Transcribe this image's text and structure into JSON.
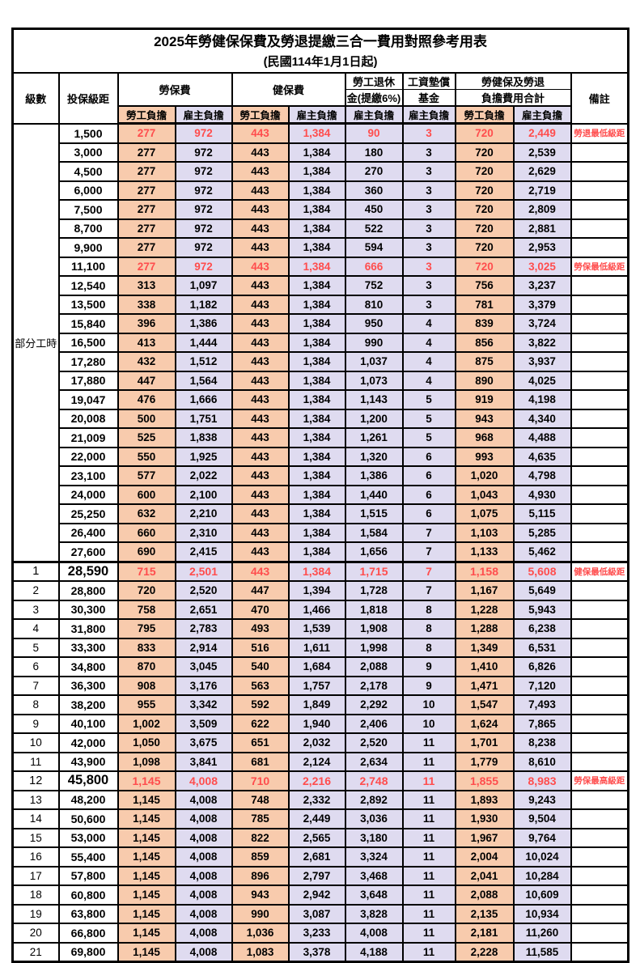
{
  "title": "2025年勞健保保費及勞退提繳三合一費用對照參考用表",
  "subtitle": "(民國114年1月1日起)",
  "columns": {
    "level": "級數",
    "bracket": "投保級距",
    "labor_insurance": "勞保費",
    "health_insurance": "健保費",
    "pension_line1": "勞工退休",
    "pension_line2": "金(提繳6%)",
    "wage_fund_line1": "工資墊償",
    "wage_fund_line2": "基金",
    "total_line1": "勞健保及勞退",
    "total_line2": "負擔費用合計",
    "remark": "備註",
    "employee": "勞工負擔",
    "employer": "雇主負擔"
  },
  "group_label": "部分工時",
  "colors": {
    "employee_bg": "#F8CBAD",
    "employer_bg": "#DFDBF0",
    "highlight_text": "#FF4D4D"
  },
  "rows": [
    {
      "level": "",
      "bracket": "1,500",
      "values": [
        "277",
        "972",
        "443",
        "1,384",
        "90",
        "3",
        "720",
        "2,449"
      ],
      "remark": "勞退最低級距",
      "red": true,
      "emph": false
    },
    {
      "level": "",
      "bracket": "3,000",
      "values": [
        "277",
        "972",
        "443",
        "1,384",
        "180",
        "3",
        "720",
        "2,539"
      ],
      "remark": "",
      "red": false,
      "emph": false
    },
    {
      "level": "",
      "bracket": "4,500",
      "values": [
        "277",
        "972",
        "443",
        "1,384",
        "270",
        "3",
        "720",
        "2,629"
      ],
      "remark": "",
      "red": false,
      "emph": false
    },
    {
      "level": "",
      "bracket": "6,000",
      "values": [
        "277",
        "972",
        "443",
        "1,384",
        "360",
        "3",
        "720",
        "2,719"
      ],
      "remark": "",
      "red": false,
      "emph": false
    },
    {
      "level": "",
      "bracket": "7,500",
      "values": [
        "277",
        "972",
        "443",
        "1,384",
        "450",
        "3",
        "720",
        "2,809"
      ],
      "remark": "",
      "red": false,
      "emph": false
    },
    {
      "level": "",
      "bracket": "8,700",
      "values": [
        "277",
        "972",
        "443",
        "1,384",
        "522",
        "3",
        "720",
        "2,881"
      ],
      "remark": "",
      "red": false,
      "emph": false
    },
    {
      "level": "",
      "bracket": "9,900",
      "values": [
        "277",
        "972",
        "443",
        "1,384",
        "594",
        "3",
        "720",
        "2,953"
      ],
      "remark": "",
      "red": false,
      "emph": false
    },
    {
      "level": "",
      "bracket": "11,100",
      "values": [
        "277",
        "972",
        "443",
        "1,384",
        "666",
        "3",
        "720",
        "3,025"
      ],
      "remark": "勞保最低級距",
      "red": true,
      "emph": false
    },
    {
      "level": "",
      "bracket": "12,540",
      "values": [
        "313",
        "1,097",
        "443",
        "1,384",
        "752",
        "3",
        "756",
        "3,237"
      ],
      "remark": "",
      "red": false,
      "emph": false
    },
    {
      "level": "",
      "bracket": "13,500",
      "values": [
        "338",
        "1,182",
        "443",
        "1,384",
        "810",
        "3",
        "781",
        "3,379"
      ],
      "remark": "",
      "red": false,
      "emph": false
    },
    {
      "level": "",
      "bracket": "15,840",
      "values": [
        "396",
        "1,386",
        "443",
        "1,384",
        "950",
        "4",
        "839",
        "3,724"
      ],
      "remark": "",
      "red": false,
      "emph": false
    },
    {
      "level": "",
      "bracket": "16,500",
      "values": [
        "413",
        "1,444",
        "443",
        "1,384",
        "990",
        "4",
        "856",
        "3,822"
      ],
      "remark": "",
      "red": false,
      "emph": false
    },
    {
      "level": "",
      "bracket": "17,280",
      "values": [
        "432",
        "1,512",
        "443",
        "1,384",
        "1,037",
        "4",
        "875",
        "3,937"
      ],
      "remark": "",
      "red": false,
      "emph": false
    },
    {
      "level": "",
      "bracket": "17,880",
      "values": [
        "447",
        "1,564",
        "443",
        "1,384",
        "1,073",
        "4",
        "890",
        "4,025"
      ],
      "remark": "",
      "red": false,
      "emph": false
    },
    {
      "level": "",
      "bracket": "19,047",
      "values": [
        "476",
        "1,666",
        "443",
        "1,384",
        "1,143",
        "5",
        "919",
        "4,198"
      ],
      "remark": "",
      "red": false,
      "emph": false
    },
    {
      "level": "",
      "bracket": "20,008",
      "values": [
        "500",
        "1,751",
        "443",
        "1,384",
        "1,200",
        "5",
        "943",
        "4,340"
      ],
      "remark": "",
      "red": false,
      "emph": false
    },
    {
      "level": "",
      "bracket": "21,009",
      "values": [
        "525",
        "1,838",
        "443",
        "1,384",
        "1,261",
        "5",
        "968",
        "4,488"
      ],
      "remark": "",
      "red": false,
      "emph": false
    },
    {
      "level": "",
      "bracket": "22,000",
      "values": [
        "550",
        "1,925",
        "443",
        "1,384",
        "1,320",
        "6",
        "993",
        "4,635"
      ],
      "remark": "",
      "red": false,
      "emph": false
    },
    {
      "level": "",
      "bracket": "23,100",
      "values": [
        "577",
        "2,022",
        "443",
        "1,384",
        "1,386",
        "6",
        "1,020",
        "4,798"
      ],
      "remark": "",
      "red": false,
      "emph": false
    },
    {
      "level": "",
      "bracket": "24,000",
      "values": [
        "600",
        "2,100",
        "443",
        "1,384",
        "1,440",
        "6",
        "1,043",
        "4,930"
      ],
      "remark": "",
      "red": false,
      "emph": false
    },
    {
      "level": "",
      "bracket": "25,250",
      "values": [
        "632",
        "2,210",
        "443",
        "1,384",
        "1,515",
        "6",
        "1,075",
        "5,115"
      ],
      "remark": "",
      "red": false,
      "emph": false
    },
    {
      "level": "",
      "bracket": "26,400",
      "values": [
        "660",
        "2,310",
        "443",
        "1,384",
        "1,584",
        "7",
        "1,103",
        "5,285"
      ],
      "remark": "",
      "red": false,
      "emph": false
    },
    {
      "level": "",
      "bracket": "27,600",
      "values": [
        "690",
        "2,415",
        "443",
        "1,384",
        "1,656",
        "7",
        "1,133",
        "5,462"
      ],
      "remark": "",
      "red": false,
      "emph": false
    },
    {
      "level": "1",
      "bracket": "28,590",
      "values": [
        "715",
        "2,501",
        "443",
        "1,384",
        "1,715",
        "7",
        "1,158",
        "5,608"
      ],
      "remark": "健保最低級距",
      "red": true,
      "emph": true
    },
    {
      "level": "2",
      "bracket": "28,800",
      "values": [
        "720",
        "2,520",
        "447",
        "1,394",
        "1,728",
        "7",
        "1,167",
        "5,649"
      ],
      "remark": "",
      "red": false,
      "emph": false
    },
    {
      "level": "3",
      "bracket": "30,300",
      "values": [
        "758",
        "2,651",
        "470",
        "1,466",
        "1,818",
        "8",
        "1,228",
        "5,943"
      ],
      "remark": "",
      "red": false,
      "emph": false
    },
    {
      "level": "4",
      "bracket": "31,800",
      "values": [
        "795",
        "2,783",
        "493",
        "1,539",
        "1,908",
        "8",
        "1,288",
        "6,238"
      ],
      "remark": "",
      "red": false,
      "emph": false
    },
    {
      "level": "5",
      "bracket": "33,300",
      "values": [
        "833",
        "2,914",
        "516",
        "1,611",
        "1,998",
        "8",
        "1,349",
        "6,531"
      ],
      "remark": "",
      "red": false,
      "emph": false
    },
    {
      "level": "6",
      "bracket": "34,800",
      "values": [
        "870",
        "3,045",
        "540",
        "1,684",
        "2,088",
        "9",
        "1,410",
        "6,826"
      ],
      "remark": "",
      "red": false,
      "emph": false
    },
    {
      "level": "7",
      "bracket": "36,300",
      "values": [
        "908",
        "3,176",
        "563",
        "1,757",
        "2,178",
        "9",
        "1,471",
        "7,120"
      ],
      "remark": "",
      "red": false,
      "emph": false
    },
    {
      "level": "8",
      "bracket": "38,200",
      "values": [
        "955",
        "3,342",
        "592",
        "1,849",
        "2,292",
        "10",
        "1,547",
        "7,493"
      ],
      "remark": "",
      "red": false,
      "emph": false
    },
    {
      "level": "9",
      "bracket": "40,100",
      "values": [
        "1,002",
        "3,509",
        "622",
        "1,940",
        "2,406",
        "10",
        "1,624",
        "7,865"
      ],
      "remark": "",
      "red": false,
      "emph": false
    },
    {
      "level": "10",
      "bracket": "42,000",
      "values": [
        "1,050",
        "3,675",
        "651",
        "2,032",
        "2,520",
        "11",
        "1,701",
        "8,238"
      ],
      "remark": "",
      "red": false,
      "emph": false
    },
    {
      "level": "11",
      "bracket": "43,900",
      "values": [
        "1,098",
        "3,841",
        "681",
        "2,124",
        "2,634",
        "11",
        "1,779",
        "8,610"
      ],
      "remark": "",
      "red": false,
      "emph": false
    },
    {
      "level": "12",
      "bracket": "45,800",
      "values": [
        "1,145",
        "4,008",
        "710",
        "2,216",
        "2,748",
        "11",
        "1,855",
        "8,983"
      ],
      "remark": "勞保最高級距",
      "red": true,
      "emph": true
    },
    {
      "level": "13",
      "bracket": "48,200",
      "values": [
        "1,145",
        "4,008",
        "748",
        "2,332",
        "2,892",
        "11",
        "1,893",
        "9,243"
      ],
      "remark": "",
      "red": false,
      "emph": false
    },
    {
      "level": "14",
      "bracket": "50,600",
      "values": [
        "1,145",
        "4,008",
        "785",
        "2,449",
        "3,036",
        "11",
        "1,930",
        "9,504"
      ],
      "remark": "",
      "red": false,
      "emph": false
    },
    {
      "level": "15",
      "bracket": "53,000",
      "values": [
        "1,145",
        "4,008",
        "822",
        "2,565",
        "3,180",
        "11",
        "1,967",
        "9,764"
      ],
      "remark": "",
      "red": false,
      "emph": false
    },
    {
      "level": "16",
      "bracket": "55,400",
      "values": [
        "1,145",
        "4,008",
        "859",
        "2,681",
        "3,324",
        "11",
        "2,004",
        "10,024"
      ],
      "remark": "",
      "red": false,
      "emph": false
    },
    {
      "level": "17",
      "bracket": "57,800",
      "values": [
        "1,145",
        "4,008",
        "896",
        "2,797",
        "3,468",
        "11",
        "2,041",
        "10,284"
      ],
      "remark": "",
      "red": false,
      "emph": false
    },
    {
      "level": "18",
      "bracket": "60,800",
      "values": [
        "1,145",
        "4,008",
        "943",
        "2,942",
        "3,648",
        "11",
        "2,088",
        "10,609"
      ],
      "remark": "",
      "red": false,
      "emph": false
    },
    {
      "level": "19",
      "bracket": "63,800",
      "values": [
        "1,145",
        "4,008",
        "990",
        "3,087",
        "3,828",
        "11",
        "2,135",
        "10,934"
      ],
      "remark": "",
      "red": false,
      "emph": false
    },
    {
      "level": "20",
      "bracket": "66,800",
      "values": [
        "1,145",
        "4,008",
        "1,036",
        "3,233",
        "4,008",
        "11",
        "2,181",
        "11,260"
      ],
      "remark": "",
      "red": false,
      "emph": false
    },
    {
      "level": "21",
      "bracket": "69,800",
      "values": [
        "1,145",
        "4,008",
        "1,083",
        "3,378",
        "4,188",
        "11",
        "2,228",
        "11,585"
      ],
      "remark": "",
      "red": false,
      "emph": false
    }
  ]
}
